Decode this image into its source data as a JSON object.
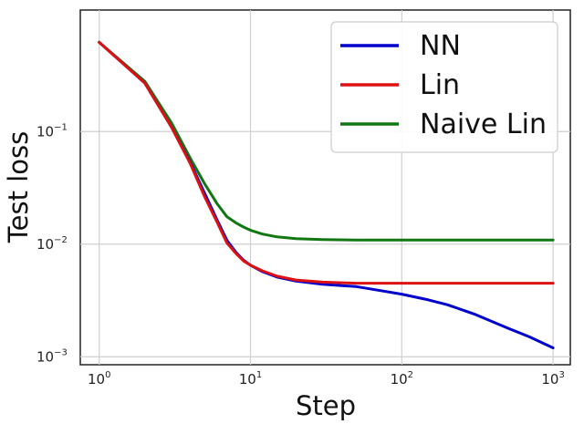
{
  "chart_data": {
    "type": "line",
    "xscale": "log",
    "yscale": "log",
    "xlabel": "Step",
    "ylabel": "Test loss",
    "xlim": [
      0.75,
      1300
    ],
    "ylim": [
      0.00085,
      1.2
    ],
    "grid": true,
    "legend_position": "top-right",
    "x_ticks": [
      {
        "value": 1,
        "base": "10",
        "exp": "0"
      },
      {
        "value": 10,
        "base": "10",
        "exp": "1"
      },
      {
        "value": 100,
        "base": "10",
        "exp": "2"
      },
      {
        "value": 1000,
        "base": "10",
        "exp": "3"
      }
    ],
    "y_ticks": [
      {
        "value": 0.001,
        "base": "10",
        "exp": "−3"
      },
      {
        "value": 0.01,
        "base": "10",
        "exp": "−2"
      },
      {
        "value": 0.1,
        "base": "10",
        "exp": "−1"
      }
    ],
    "series": [
      {
        "name": "NN",
        "color": "#0000cc",
        "x": [
          1,
          2,
          3,
          4,
          5,
          6,
          7,
          8,
          9,
          10,
          12,
          15,
          20,
          30,
          50,
          70,
          100,
          150,
          200,
          300,
          500,
          700,
          1000
        ],
        "y": [
          0.62,
          0.27,
          0.11,
          0.053,
          0.028,
          0.0165,
          0.0108,
          0.0085,
          0.0072,
          0.0065,
          0.0057,
          0.0051,
          0.0047,
          0.0044,
          0.0042,
          0.0039,
          0.0036,
          0.0032,
          0.0029,
          0.0024,
          0.0018,
          0.0015,
          0.0012
        ]
      },
      {
        "name": "Lin",
        "color": "#dd1111",
        "x": [
          1,
          2,
          3,
          4,
          5,
          6,
          7,
          8,
          9,
          10,
          12,
          15,
          20,
          30,
          50,
          100,
          200,
          500,
          1000
        ],
        "y": [
          0.62,
          0.27,
          0.11,
          0.052,
          0.026,
          0.0158,
          0.0102,
          0.0083,
          0.0071,
          0.0065,
          0.0058,
          0.0052,
          0.0048,
          0.0046,
          0.0045,
          0.0045,
          0.0045,
          0.0045,
          0.0045
        ]
      },
      {
        "name": "Naive Lin",
        "color": "#117711",
        "x": [
          1,
          2,
          3,
          4,
          5,
          6,
          7,
          8,
          9,
          10,
          12,
          15,
          20,
          30,
          50,
          100,
          200,
          500,
          1000
        ],
        "y": [
          0.62,
          0.28,
          0.12,
          0.058,
          0.034,
          0.023,
          0.0175,
          0.0155,
          0.0142,
          0.0133,
          0.0123,
          0.0116,
          0.0112,
          0.011,
          0.0109,
          0.0109,
          0.0109,
          0.0109,
          0.0109
        ]
      }
    ]
  }
}
